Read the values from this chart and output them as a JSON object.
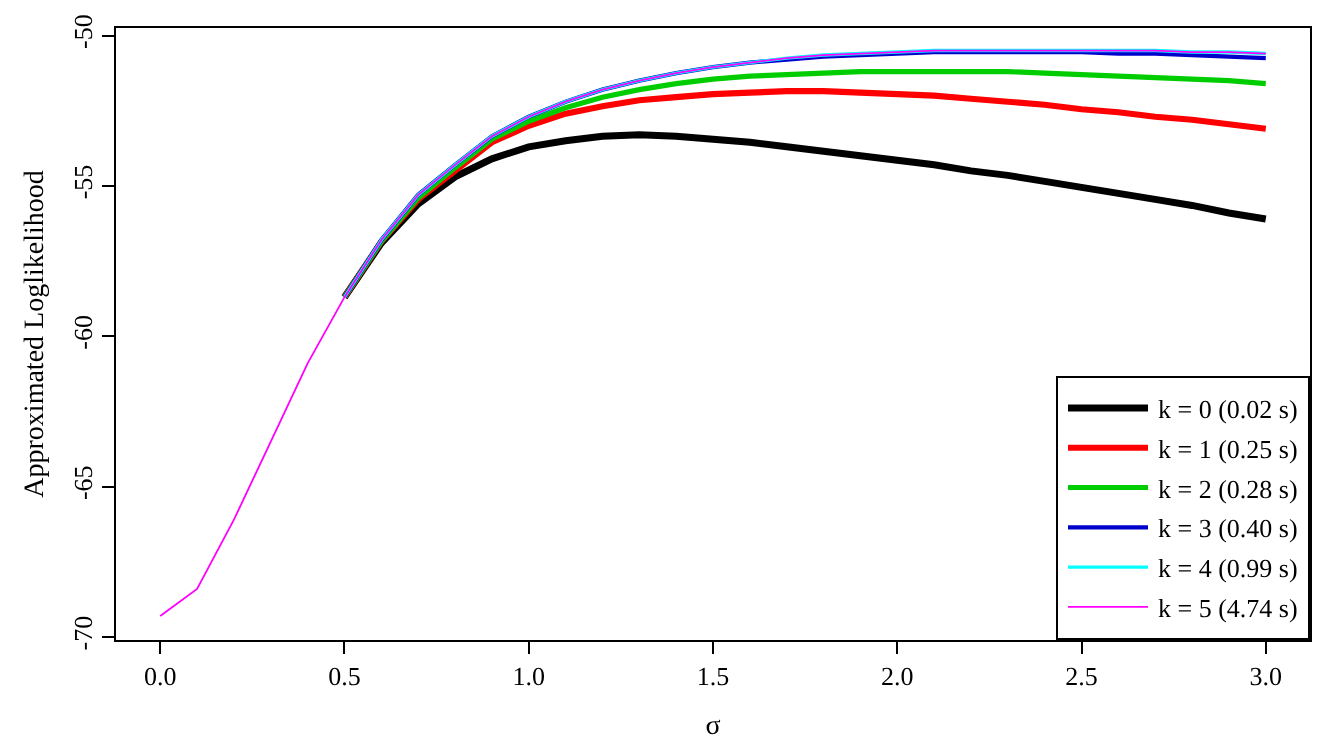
{
  "chart_data": {
    "type": "line",
    "xlabel": "σ",
    "ylabel": "Approximated Loglikelihood",
    "x": [
      0,
      0.1,
      0.2,
      0.3,
      0.4,
      0.5,
      0.6,
      0.7,
      0.8,
      0.9,
      1.0,
      1.1,
      1.2,
      1.3,
      1.4,
      1.5,
      1.6,
      1.7,
      1.8,
      1.9,
      2.0,
      2.1,
      2.2,
      2.3,
      2.4,
      2.5,
      2.6,
      2.7,
      2.8,
      2.9,
      3.0
    ],
    "xlim": [
      -0.12,
      3.12
    ],
    "xticks": [
      {
        "value": 0,
        "label": "0.0"
      },
      0.5,
      {
        "value": 1,
        "label": "1.0"
      },
      1.5,
      {
        "value": 2,
        "label": "2.0"
      },
      2.5,
      {
        "value": 3,
        "label": "3.0"
      }
    ],
    "ylim": [
      -70.1,
      -49.75
    ],
    "yticks": [
      -70,
      -65,
      -60,
      -55,
      -50
    ],
    "grid": false,
    "legend": "bottom right",
    "marker": "none",
    "line_style": "solid",
    "series": [
      {
        "name": "k = 0 (0.02 s)",
        "color": "#000000",
        "values": [
          null,
          null,
          null,
          null,
          null,
          -58.7,
          -56.9,
          -55.6,
          -54.7,
          -54.1,
          -53.7,
          -53.5,
          -53.35,
          -53.3,
          -53.35,
          -53.45,
          -53.55,
          -53.7,
          -53.85,
          -54.0,
          -54.15,
          -54.3,
          -54.5,
          -54.65,
          -54.85,
          -55.05,
          -55.25,
          -55.45,
          -55.65,
          -55.9,
          -56.1
        ]
      },
      {
        "name": "k = 1 (0.25 s)",
        "color": "#ff0000",
        "values": [
          null,
          null,
          null,
          null,
          null,
          -58.7,
          -56.85,
          -55.45,
          -54.5,
          -53.55,
          -53.0,
          -52.6,
          -52.35,
          -52.15,
          -52.05,
          -51.95,
          -51.9,
          -51.85,
          -51.85,
          -51.9,
          -51.95,
          -52.0,
          -52.1,
          -52.2,
          -52.3,
          -52.45,
          -52.55,
          -52.7,
          -52.8,
          -52.95,
          -53.1
        ]
      },
      {
        "name": "k = 2 (0.28 s)",
        "color": "#00cd00",
        "values": [
          null,
          null,
          null,
          null,
          null,
          -58.7,
          -56.85,
          -55.4,
          -54.4,
          -53.45,
          -52.85,
          -52.4,
          -52.05,
          -51.8,
          -51.6,
          -51.45,
          -51.35,
          -51.3,
          -51.25,
          -51.2,
          -51.2,
          -51.2,
          -51.2,
          -51.2,
          -51.25,
          -51.3,
          -51.35,
          -51.4,
          -51.45,
          -51.5,
          -51.6
        ]
      },
      {
        "name": "k = 3 (0.40 s)",
        "color": "#0000cd",
        "values": [
          null,
          null,
          null,
          null,
          null,
          -58.7,
          -56.8,
          -55.3,
          -54.3,
          -53.35,
          -52.7,
          -52.2,
          -51.8,
          -51.5,
          -51.25,
          -51.05,
          -50.9,
          -50.8,
          -50.7,
          -50.65,
          -50.6,
          -50.55,
          -50.55,
          -50.55,
          -50.55,
          -50.55,
          -50.6,
          -50.6,
          -50.65,
          -50.7,
          -50.75
        ]
      },
      {
        "name": "k = 4 (0.99 s)",
        "color": "#00ffff",
        "values": [
          null,
          null,
          null,
          null,
          null,
          -58.7,
          -56.8,
          -55.3,
          -54.3,
          -53.35,
          -52.7,
          -52.2,
          -51.8,
          -51.5,
          -51.25,
          -51.05,
          -50.9,
          -50.75,
          -50.65,
          -50.6,
          -50.55,
          -50.5,
          -50.5,
          -50.5,
          -50.5,
          -50.5,
          -50.5,
          -50.5,
          -50.55,
          -50.55,
          -50.6
        ]
      },
      {
        "name": "k = 5 (4.74 s)",
        "color": "#ff00ff",
        "values": [
          -69.3,
          -68.4,
          -66.1,
          -63.5,
          -60.9,
          -58.7,
          -56.8,
          -55.3,
          -54.3,
          -53.35,
          -52.7,
          -52.2,
          -51.8,
          -51.5,
          -51.25,
          -51.05,
          -50.9,
          -50.75,
          -50.65,
          -50.6,
          -50.55,
          -50.5,
          -50.5,
          -50.5,
          -50.5,
          -50.5,
          -50.5,
          -50.5,
          -50.55,
          -50.55,
          -50.6
        ]
      }
    ]
  }
}
